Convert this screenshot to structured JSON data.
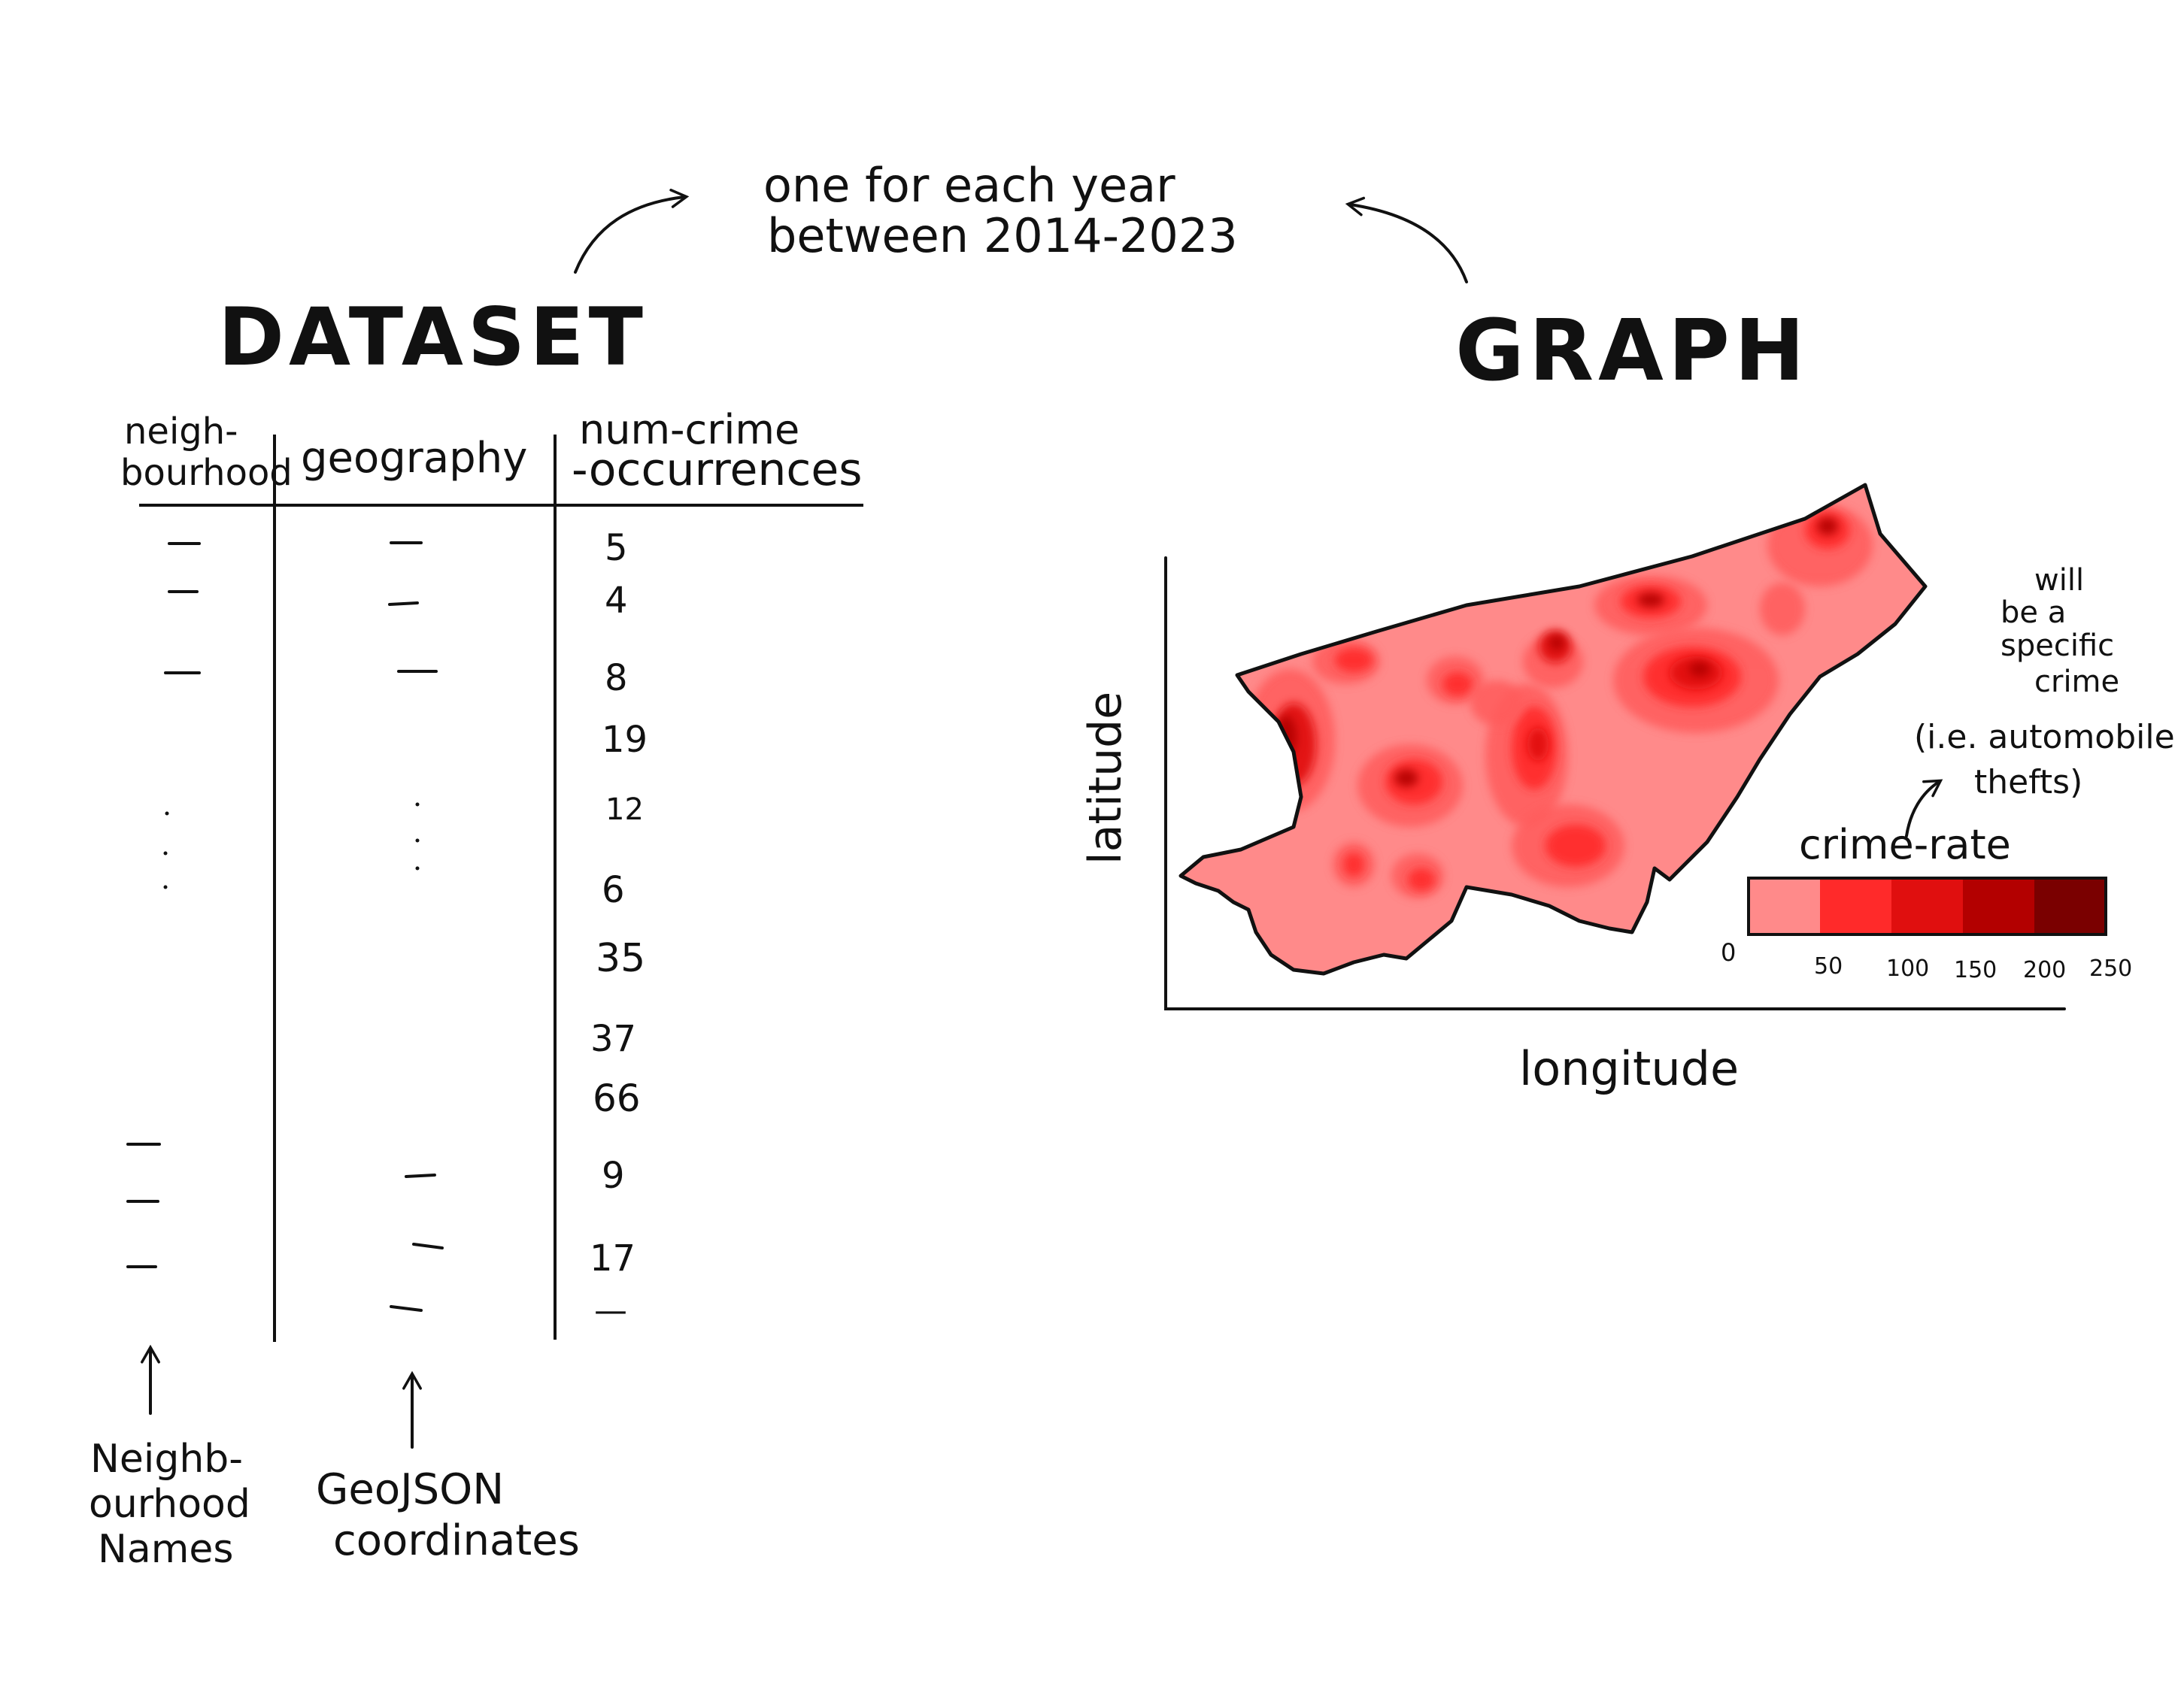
{
  "top_note": {
    "line1": "one for each year",
    "line2": "between 2014-2023"
  },
  "dataset": {
    "title": "DATASET",
    "columns": [
      {
        "line1": "neigh-",
        "line2": "bourhood"
      },
      {
        "line1": "geography",
        "line2": ""
      },
      {
        "line1": "num-crime",
        "line2": "-occurrences"
      }
    ],
    "num_crime_occurrences": [
      "5",
      "4",
      "8",
      "19",
      "12",
      "6",
      "35",
      "37",
      "66",
      "9",
      "17",
      "—"
    ],
    "annotations": [
      {
        "lines": [
          "Neighb-",
          "ourhood",
          "Names"
        ]
      },
      {
        "lines": [
          "GeoJSON",
          "coordinates"
        ]
      }
    ]
  },
  "graph": {
    "title": "GRAPH",
    "ylabel": "latitude",
    "xlabel": "longitude",
    "note_lines": [
      "will",
      "be a",
      "specific",
      "crime"
    ],
    "example_lines": [
      "(i.e. automobile",
      "thefts)"
    ],
    "legend": {
      "title": "crime-rate",
      "ticks": [
        "0",
        "50",
        "100",
        "150",
        "200",
        "250"
      ],
      "colors": [
        "#ff8a8a",
        "#ff5c5c",
        "#ff2a2a",
        "#e00f0f",
        "#b30000",
        "#7a0000"
      ]
    },
    "map_fill": "#ff8a8a",
    "hotspot_colors": [
      "#ff5c5c",
      "#ff2a2a",
      "#e00f0f",
      "#b30000"
    ]
  }
}
